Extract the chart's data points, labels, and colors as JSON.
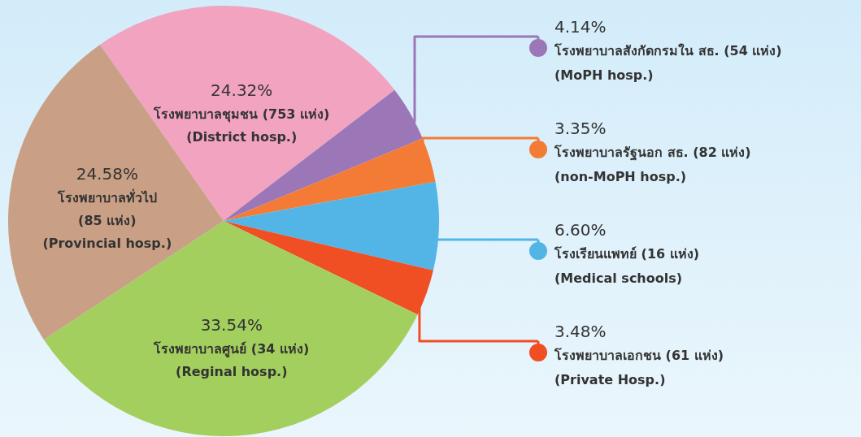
{
  "chart_data": {
    "type": "pie",
    "categories": [
      "โรงพยาบาลชุมชน (753 แห่ง)\n(District hosp.)",
      "โรงพยาบาลสังกัดกรมใน สธ. (54 แห่ง)\n(MoPH hosp.)",
      "โรงพยาบาลรัฐนอก สธ. (82 แห่ง)\n(non-MoPH hosp.)",
      "โรงเรียนแพทย์ (16 แห่ง)\n(Medical schools)",
      "โรงพยาบาลเอกชน (61 แห่ง)\n(Private Hosp.)",
      "โรงพยาบาลศูนย์ (34 แห่ง)\n(Reginal hosp.)",
      "โรงพยาบาลทั่วไป\n(85 แห่ง)\n(Provincial hosp.)"
    ],
    "values": [
      24.32,
      4.14,
      3.35,
      6.6,
      3.48,
      33.54,
      24.58
    ],
    "value_labels": [
      "24.32%",
      "4.14%",
      "3.35%",
      "6.60%",
      "3.48%",
      "33.54%",
      "24.58%"
    ],
    "legend": "right",
    "colors": [
      "#f2a3c0",
      "#9b77b8",
      "#f47b35",
      "#52b5e5",
      "#f04e23",
      "#a3cf5f",
      "#c9a085"
    ]
  }
}
